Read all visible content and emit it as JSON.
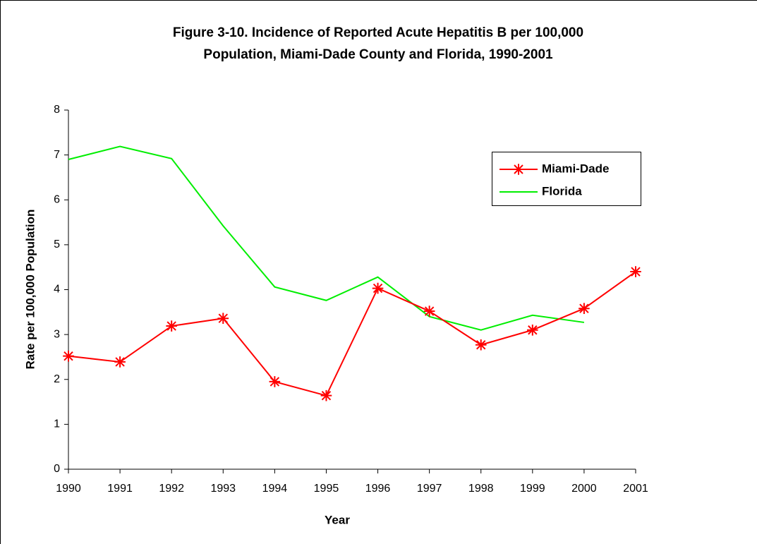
{
  "chart_data": {
    "type": "line",
    "title": [
      "Figure 3-10.  Incidence of Reported Acute Hepatitis B per 100,000",
      "Population, Miami-Dade County and Florida, 1990-2001"
    ],
    "x_label": "Year",
    "y_label": "Rate per 100,000 Population",
    "categories": [
      "1990",
      "1991",
      "1992",
      "1993",
      "1994",
      "1995",
      "1996",
      "1997",
      "1998",
      "1999",
      "2000",
      "2001"
    ],
    "series": [
      {
        "name": "Miami-Dade",
        "color": "#ff0000",
        "marker": "asterisk",
        "values": [
          2.52,
          2.39,
          3.19,
          3.36,
          1.95,
          1.64,
          4.03,
          3.52,
          2.77,
          3.1,
          3.58,
          4.4
        ]
      },
      {
        "name": "Florida",
        "color": "#00ee00",
        "values": [
          6.9,
          7.19,
          6.92,
          5.42,
          4.06,
          3.76,
          4.28,
          3.4,
          3.1,
          3.43,
          3.27,
          null
        ]
      }
    ],
    "ylim": [
      0,
      8
    ],
    "yticks": [
      0,
      1,
      2,
      3,
      4,
      5,
      6,
      7,
      8
    ],
    "grid": false,
    "legend": "upper right"
  }
}
